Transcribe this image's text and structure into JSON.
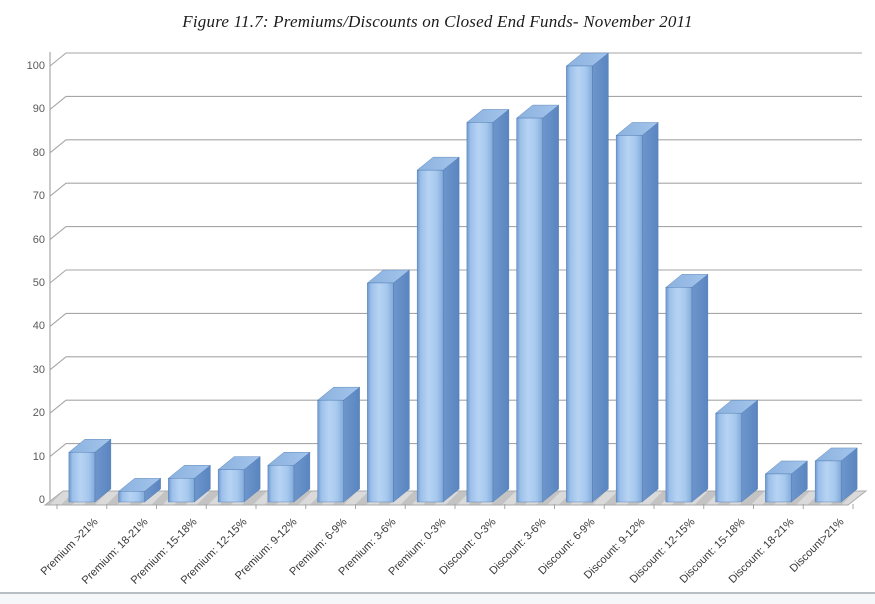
{
  "chart_data": {
    "type": "bar",
    "style": "3d-column",
    "title": "Figure 11.7: Premiums/Discounts on Closed End Funds- November 2011",
    "categories": [
      "Premium >21%",
      "Premium: 18-21%",
      "Premium: 15-18%",
      "Premium: 12-15%",
      "Premium: 9-12%",
      "Premium: 6-9%",
      "Premium: 3-6%",
      "Premium: 0-3%",
      "Discount: 0-3%",
      "Discount: 3-6%",
      "Discount: 6-9%",
      "Discount: 9-12%",
      "Discount: 12-15%",
      "Discount: 15-18%",
      "Discount: 18-21%",
      "Discount>21%"
    ],
    "values": [
      11,
      2,
      5,
      7,
      8,
      23,
      50,
      76,
      87,
      88,
      100,
      84,
      49,
      20,
      6,
      9
    ],
    "xlabel": "",
    "ylabel": "",
    "ylim": [
      0,
      100
    ],
    "yticks": [
      0,
      10,
      20,
      30,
      40,
      50,
      60,
      70,
      80,
      90,
      100
    ],
    "grid": true,
    "legend": false,
    "colors": {
      "bar_edge_dark": "#6b97cf",
      "bar_light": "#b7d3f3",
      "bar_mid": "#9cc0ea",
      "bar_side": "#6390c8",
      "bar_top": "#8ab1de",
      "bar_outline": "#4a76ad",
      "gridline": "#a6a6a6",
      "axis_line": "#a8a8a8",
      "floor_light": "#dadada",
      "floor_dark": "#c3c3c3",
      "floor_edge": "#ababab",
      "y_label_text": "#595959",
      "x_label_text": "#383838",
      "bottom_rule": "#b7bec4"
    }
  }
}
